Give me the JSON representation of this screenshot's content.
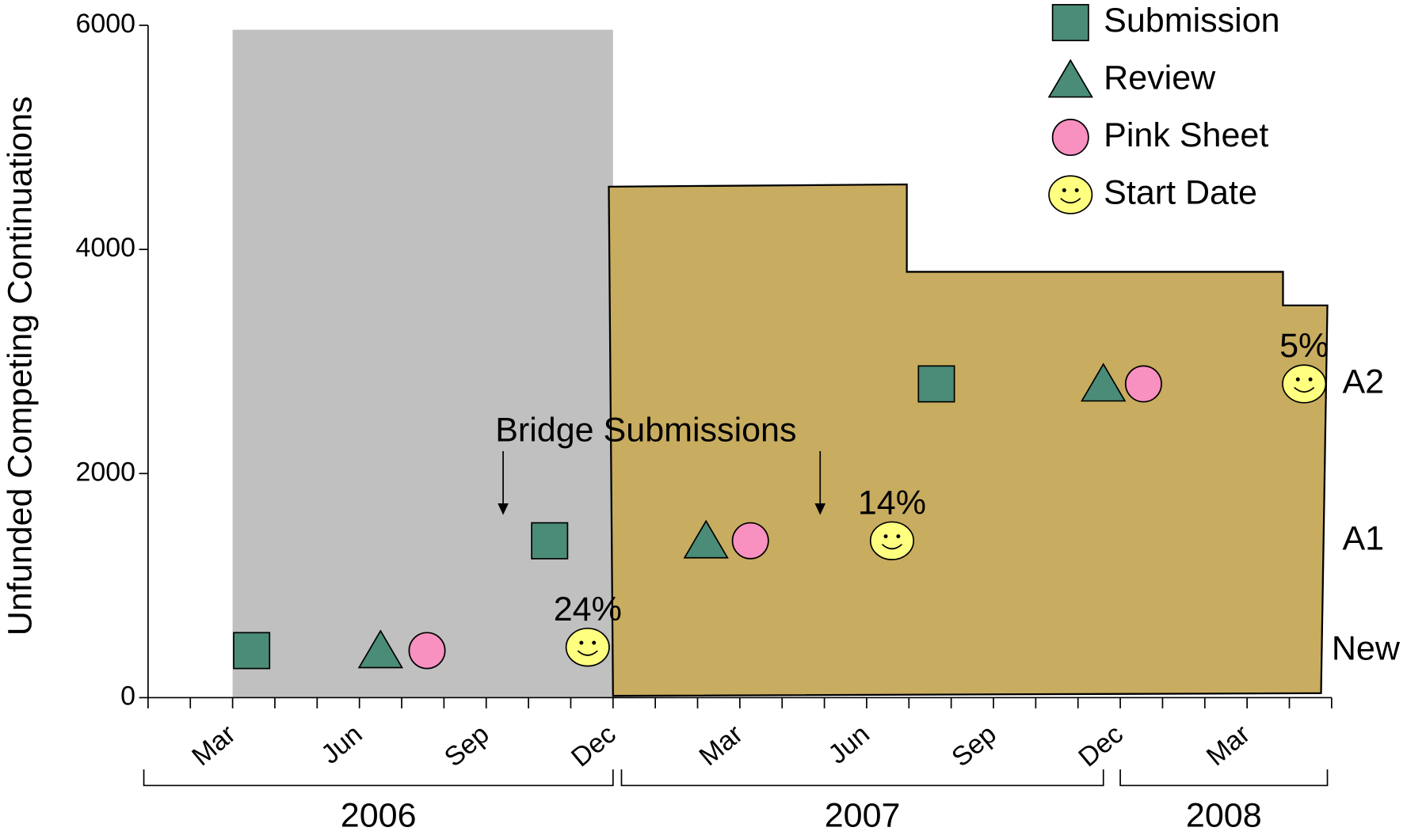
{
  "chart_data": {
    "type": "scatter",
    "y_label": "Unfunded Competing Continuations",
    "ylim": [
      0,
      6000
    ],
    "yticks": [
      0,
      2000,
      4000,
      6000
    ],
    "xlim": [
      0,
      28
    ],
    "xticks": [
      {
        "value": 2,
        "label": "Mar"
      },
      {
        "value": 5,
        "label": "Jun"
      },
      {
        "value": 8,
        "label": "Sep"
      },
      {
        "value": 11,
        "label": "Dec"
      },
      {
        "value": 14,
        "label": "Mar"
      },
      {
        "value": 17,
        "label": "Jun"
      },
      {
        "value": 20,
        "label": "Sep"
      },
      {
        "value": 23,
        "label": "Dec"
      },
      {
        "value": 26,
        "label": "Mar"
      }
    ],
    "xminorticks": [
      0,
      1,
      2,
      3,
      4,
      5,
      6,
      7,
      8,
      9,
      10,
      11,
      12,
      13,
      14,
      15,
      16,
      17,
      18,
      19,
      20,
      21,
      22,
      23,
      24,
      25,
      26,
      27,
      28
    ],
    "year_groups": [
      {
        "label": "2006",
        "start": -0.1,
        "end": 11
      },
      {
        "label": "2007",
        "start": 11.2,
        "end": 22.6
      },
      {
        "label": "2008",
        "start": 23,
        "end": 27.9
      }
    ],
    "shaded_region": {
      "x": [
        2,
        11
      ],
      "y": [
        0,
        5960
      ],
      "color": "#c0c0c0"
    },
    "area": {
      "color": "#c8ac60",
      "x": [
        10.9,
        17.95,
        17.95,
        26.85,
        26.85,
        27.9,
        27.75,
        11.0
      ],
      "y": [
        4560,
        4580,
        3800,
        3800,
        3500,
        3500,
        40,
        16
      ]
    },
    "series": [
      {
        "name": "Submission",
        "marker": "square",
        "color": "#4a8c78",
        "x": [
          2.45,
          9.5,
          18.65
        ],
        "y": [
          420,
          1400,
          2800
        ]
      },
      {
        "name": "Review",
        "marker": "triangle",
        "color": "#4a8c78",
        "x": [
          5.5,
          13.2,
          22.6
        ],
        "y": [
          420,
          1400,
          2800
        ]
      },
      {
        "name": "Pink Sheet",
        "marker": "circle",
        "color": "#f890c0",
        "x": [
          6.6,
          14.25,
          23.55
        ],
        "y": [
          420,
          1400,
          2800
        ]
      },
      {
        "name": "Start Date",
        "marker": "smiley",
        "color": "#ffff80",
        "x": [
          10.4,
          17.6,
          27.35
        ],
        "y": [
          450,
          1400,
          2800
        ],
        "point_labels": [
          "24%",
          "14%",
          "5%"
        ]
      }
    ],
    "row_labels": [
      "New",
      "A1",
      "A2"
    ],
    "annotation": {
      "text": "Bridge Submissions",
      "arrows_x": [
        8.4,
        15.9
      ],
      "arrow_tip_y": 1630
    }
  }
}
